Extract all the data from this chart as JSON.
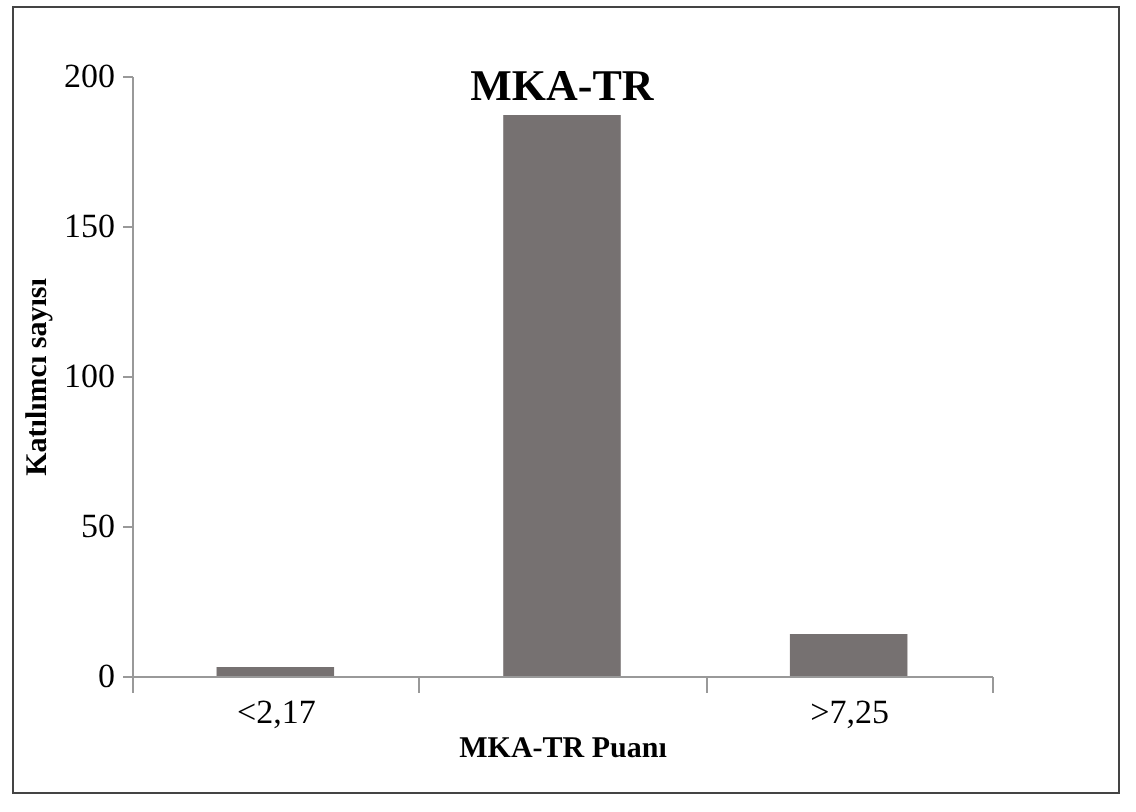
{
  "chart_data": {
    "type": "bar",
    "title": "MKA-TR",
    "xlabel": "MKA-TR Puanı",
    "ylabel": "Katılımcı sayısı",
    "categories": [
      "<2,17",
      null,
      ">7,25"
    ],
    "values": [
      3,
      187,
      14
    ],
    "color": "#767171",
    "ylim": [
      0,
      200
    ],
    "yticks": [
      0,
      50,
      100,
      150,
      200
    ],
    "grid": false
  }
}
